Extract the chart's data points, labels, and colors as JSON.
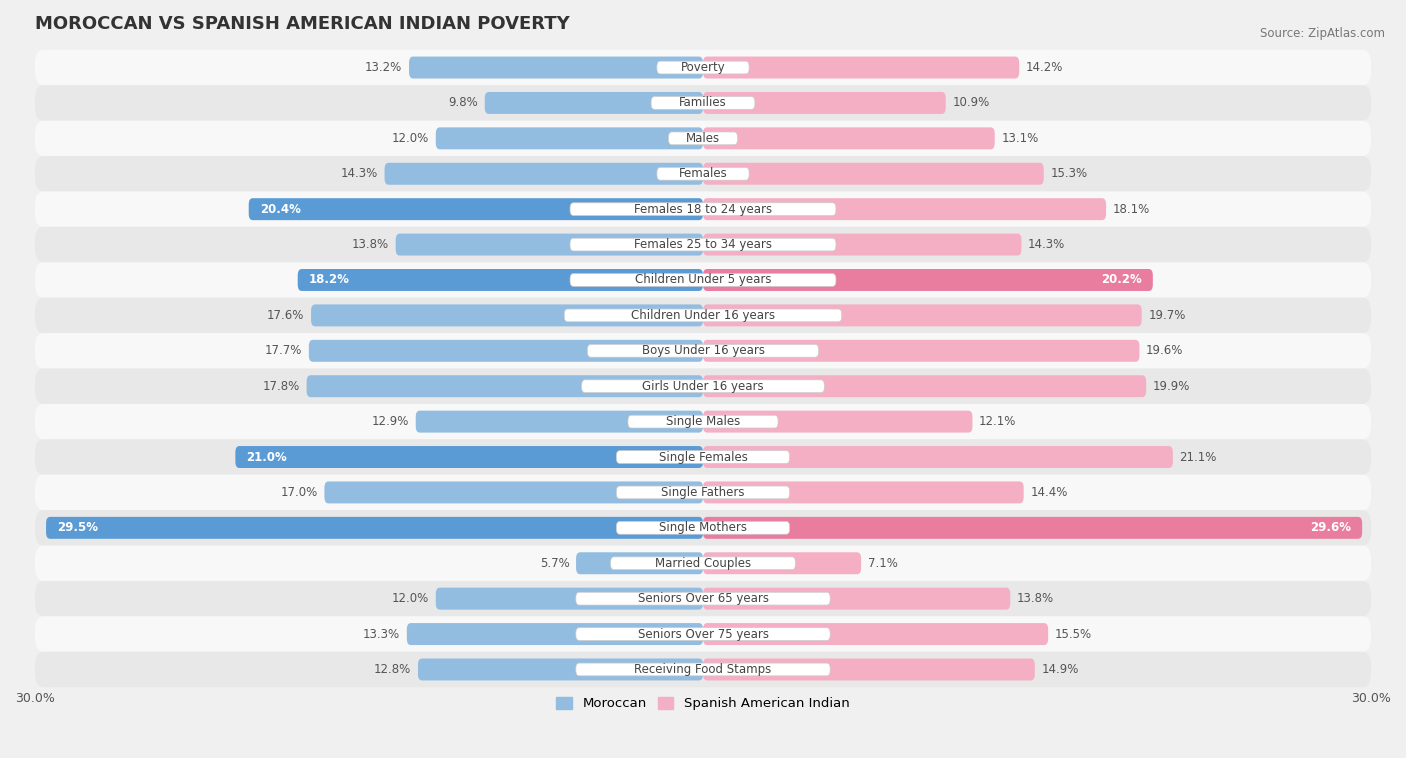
{
  "title": "MOROCCAN VS SPANISH AMERICAN INDIAN POVERTY",
  "source": "Source: ZipAtlas.com",
  "categories": [
    "Poverty",
    "Families",
    "Males",
    "Females",
    "Females 18 to 24 years",
    "Females 25 to 34 years",
    "Children Under 5 years",
    "Children Under 16 years",
    "Boys Under 16 years",
    "Girls Under 16 years",
    "Single Males",
    "Single Females",
    "Single Fathers",
    "Single Mothers",
    "Married Couples",
    "Seniors Over 65 years",
    "Seniors Over 75 years",
    "Receiving Food Stamps"
  ],
  "moroccan": [
    13.2,
    9.8,
    12.0,
    14.3,
    20.4,
    13.8,
    18.2,
    17.6,
    17.7,
    17.8,
    12.9,
    21.0,
    17.0,
    29.5,
    5.7,
    12.0,
    13.3,
    12.8
  ],
  "spanish_american_indian": [
    14.2,
    10.9,
    13.1,
    15.3,
    18.1,
    14.3,
    20.2,
    19.7,
    19.6,
    19.9,
    12.1,
    21.1,
    14.4,
    29.6,
    7.1,
    13.8,
    15.5,
    14.9
  ],
  "moroccan_color": "#92bce0",
  "moroccan_highlight_color": "#5b9bd5",
  "spanish_color": "#f4afc4",
  "spanish_highlight_color": "#e87da0",
  "moroccan_highlight_rows": [
    4,
    6,
    11,
    13
  ],
  "spanish_highlight_rows": [
    6,
    13
  ],
  "background_color": "#f0f0f0",
  "row_bg_light": "#f8f8f8",
  "row_bg_dark": "#e8e8e8",
  "max_val": 30.0,
  "axis_label": "30.0%",
  "bar_height": 0.62,
  "legend_moroccan": "Moroccan",
  "legend_spanish": "Spanish American Indian"
}
